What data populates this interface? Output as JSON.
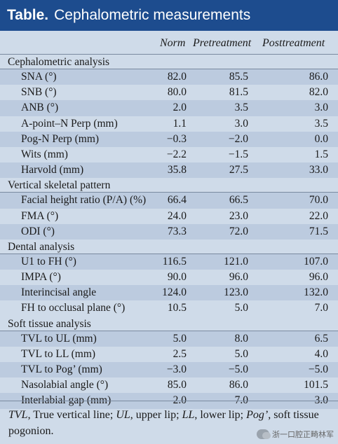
{
  "title": {
    "lead": "Table.",
    "text": "Cephalometric measurements"
  },
  "columns": [
    "Norm",
    "Pretreatment",
    "Posttreatment"
  ],
  "sections": [
    {
      "name": "Cephalometric analysis",
      "rows": [
        {
          "label": "SNA (°)",
          "norm": "82.0",
          "pre": "85.5",
          "post": "86.0"
        },
        {
          "label": "SNB (°)",
          "norm": "80.0",
          "pre": "81.5",
          "post": "82.0"
        },
        {
          "label": "ANB (°)",
          "norm": "2.0",
          "pre": "3.5",
          "post": "3.0"
        },
        {
          "label": "A-point–N Perp (mm)",
          "norm": "1.1",
          "pre": "3.0",
          "post": "3.5"
        },
        {
          "label": "Pog-N Perp (mm)",
          "norm": "−0.3",
          "pre": "−2.0",
          "post": "0.0"
        },
        {
          "label": "Wits (mm)",
          "norm": "−2.2",
          "pre": "−1.5",
          "post": "1.5"
        },
        {
          "label": "Harvold (mm)",
          "norm": "35.8",
          "pre": "27.5",
          "post": "33.0"
        }
      ]
    },
    {
      "name": "Vertical skeletal pattern",
      "rows": [
        {
          "label": "Facial height ratio (P/A) (%)",
          "norm": "66.4",
          "pre": "66.5",
          "post": "70.0"
        },
        {
          "label": "FMA (°)",
          "norm": "24.0",
          "pre": "23.0",
          "post": "22.0"
        },
        {
          "label": "ODI (°)",
          "norm": "73.3",
          "pre": "72.0",
          "post": "71.5"
        }
      ]
    },
    {
      "name": "Dental analysis",
      "rows": [
        {
          "label": "U1 to FH (°)",
          "norm": "116.5",
          "pre": "121.0",
          "post": "107.0"
        },
        {
          "label": "IMPA (°)",
          "norm": "90.0",
          "pre": "96.0",
          "post": "96.0"
        },
        {
          "label": "Interincisal angle",
          "norm": "124.0",
          "pre": "123.0",
          "post": "132.0"
        },
        {
          "label": "FH to occlusal plane (°)",
          "norm": "10.5",
          "pre": "5.0",
          "post": "7.0"
        }
      ]
    },
    {
      "name": "Soft tissue analysis",
      "rows": [
        {
          "label": "TVL to UL (mm)",
          "norm": "5.0",
          "pre": "8.0",
          "post": "6.5"
        },
        {
          "label": "TVL to LL (mm)",
          "norm": "2.5",
          "pre": "5.0",
          "post": "4.0"
        },
        {
          "label": "TVL to Pog’ (mm)",
          "norm": "−3.0",
          "pre": "−5.0",
          "post": "−5.0"
        },
        {
          "label": "Nasolabial angle (°)",
          "norm": "85.0",
          "pre": "86.0",
          "post": "101.5"
        },
        {
          "label": "Interlabial gap (mm)",
          "norm": "2.0",
          "pre": "7.0",
          "post": "3.0"
        }
      ]
    }
  ],
  "footnote": [
    {
      "text": "TVL",
      "italic": true
    },
    {
      "text": ", True vertical line; ",
      "italic": false
    },
    {
      "text": "UL",
      "italic": true
    },
    {
      "text": ", upper lip; ",
      "italic": false
    },
    {
      "text": "LL",
      "italic": true
    },
    {
      "text": ", lower lip; ",
      "italic": false
    },
    {
      "text": "Pog’",
      "italic": true
    },
    {
      "text": ", soft tissue pogonion.",
      "italic": false
    }
  ],
  "watermark": "浙一口腔正畸林军",
  "colors": {
    "title_bg": "#1d4c8e",
    "page_bg": "#cfdbe9",
    "band_bg": "#bccbdf"
  }
}
